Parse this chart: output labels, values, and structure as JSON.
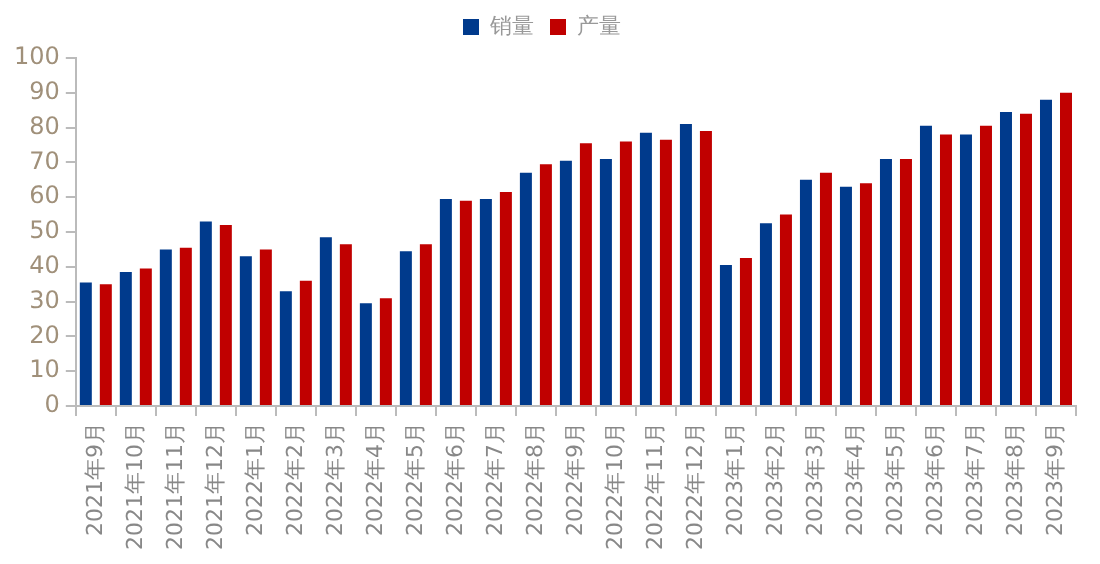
{
  "chart_data": {
    "type": "bar",
    "categories": [
      "2021年9月",
      "2021年10月",
      "2021年11月",
      "2021年12月",
      "2022年1月",
      "2022年2月",
      "2022年3月",
      "2022年4月",
      "2022年5月",
      "2022年6月",
      "2022年7月",
      "2022年8月",
      "2022年9月",
      "2022年10月",
      "2022年11月",
      "2022年12月",
      "2023年1月",
      "2023年2月",
      "2023年3月",
      "2023年4月",
      "2023年5月",
      "2023年6月",
      "2023年7月",
      "2023年8月",
      "2023年9月"
    ],
    "series": [
      {
        "name": "销量",
        "color": "#003a8c",
        "values": [
          35.5,
          38.5,
          45,
          53,
          43,
          33,
          48.5,
          29.5,
          44.5,
          59.5,
          59.5,
          67,
          70.5,
          71,
          78.5,
          81,
          40.5,
          52.5,
          65,
          63,
          71,
          80.5,
          78,
          84.5,
          88
        ]
      },
      {
        "name": "产量",
        "color": "#c00000",
        "values": [
          35,
          39.5,
          45.5,
          52,
          45,
          36,
          46.5,
          31,
          46.5,
          59,
          61.5,
          69.5,
          75.5,
          76,
          76.5,
          79,
          42.5,
          55,
          67,
          64,
          71,
          78,
          80.5,
          84,
          90
        ]
      }
    ],
    "ylim": [
      0,
      100
    ],
    "yticks": [
      0,
      10,
      20,
      30,
      40,
      50,
      60,
      70,
      80,
      90,
      100
    ],
    "grid": false,
    "legend": "top"
  }
}
